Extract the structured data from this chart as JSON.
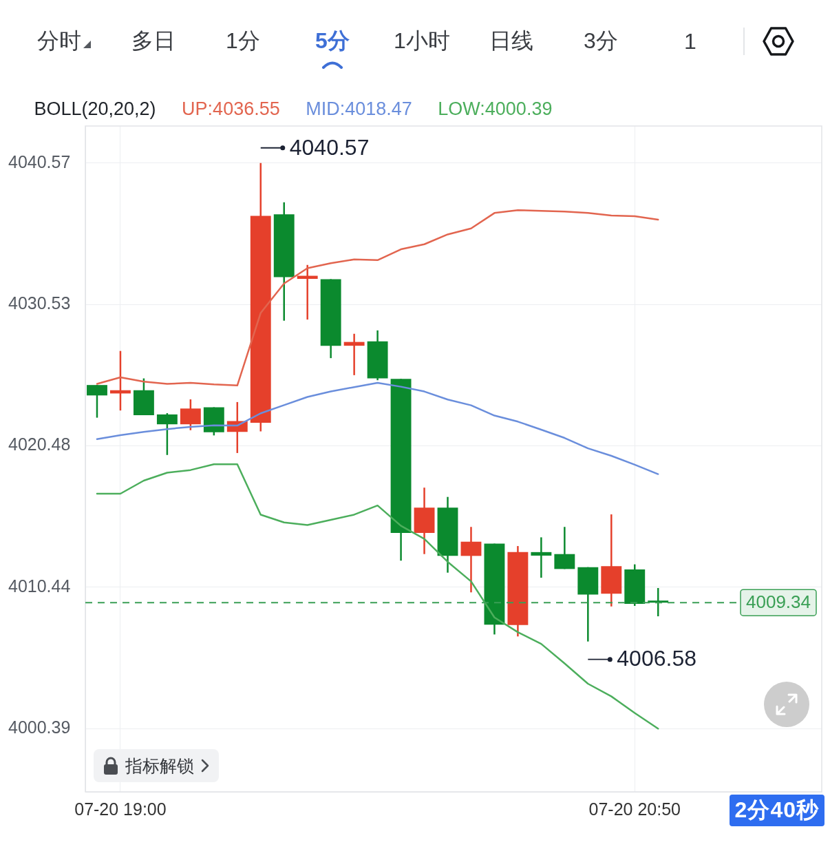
{
  "chart_data": {
    "type": "candlestick",
    "legend_title": "BOLL(20,20,2)",
    "legend": "top left",
    "grid": true,
    "categories": [
      null,
      "07-20 19:00",
      null,
      null,
      null,
      null,
      null,
      null,
      null,
      null,
      null,
      null,
      null,
      null,
      null,
      null,
      null,
      null,
      null,
      null,
      null,
      null,
      null,
      "07-20 20:50",
      null
    ],
    "ohlc": [
      [
        4024.8,
        4024.8,
        4022.48,
        4024.06
      ],
      [
        4024.2,
        4027.22,
        4022.99,
        4024.43
      ],
      [
        4024.43,
        4025.27,
        4022.66,
        4022.66
      ],
      [
        4022.71,
        4022.8,
        4019.83,
        4022.01
      ],
      [
        4022.01,
        4023.78,
        4021.59,
        4023.13
      ],
      [
        4023.22,
        4023.22,
        4021.22,
        4021.45
      ],
      [
        4021.47,
        4023.59,
        4019.97,
        4022.24
      ],
      [
        4022.12,
        4040.57,
        4021.51,
        4036.82
      ],
      [
        4036.93,
        4037.78,
        4029.37,
        4032.46
      ],
      [
        4032.34,
        4033.33,
        4029.45,
        4032.56
      ],
      [
        4032.32,
        4032.32,
        4026.71,
        4027.59
      ],
      [
        4027.59,
        4028.44,
        4025.5,
        4027.86
      ],
      [
        4027.9,
        4028.68,
        4025.14,
        4025.27
      ],
      [
        4025.24,
        4025.24,
        4012.32,
        4014.29
      ],
      [
        4014.29,
        4017.51,
        4012.79,
        4016.09
      ],
      [
        4016.09,
        4016.85,
        4011.47,
        4012.66
      ],
      [
        4012.66,
        4014.72,
        4010.07,
        4013.67
      ],
      [
        4013.53,
        4013.53,
        4007.08,
        4007.78
      ],
      [
        4007.75,
        4013.36,
        4006.94,
        4012.94
      ],
      [
        4012.93,
        4013.98,
        4011.11,
        4012.68
      ],
      [
        4012.79,
        4014.72,
        4011.73,
        4011.73
      ],
      [
        4011.86,
        4011.86,
        4006.58,
        4009.92
      ],
      [
        4009.97,
        4015.61,
        4009.07,
        4011.93
      ],
      [
        4011.7,
        4012.06,
        4009.11,
        4009.25
      ],
      [
        4009.34,
        4010.38,
        4008.37,
        4009.34
      ]
    ],
    "colors": [
      "#0b8a2e",
      "#e5402b",
      "#0b8a2e",
      "#0b8a2e",
      "#e5402b",
      "#0b8a2e",
      "#e5402b",
      "#e5402b",
      "#0b8a2e",
      "#e5402b",
      "#0b8a2e",
      "#e5402b",
      "#0b8a2e",
      "#0b8a2e",
      "#e5402b",
      "#0b8a2e",
      "#e5402b",
      "#0b8a2e",
      "#e5402b",
      "#0b8a2e",
      "#0b8a2e",
      "#0b8a2e",
      "#e5402b",
      "#0b8a2e",
      "#0b8a2e"
    ],
    "series": [
      {
        "type": "line",
        "name": "UP:4036.55",
        "color": "#e2654f",
        "values": [
          4024.88,
          4025.35,
          4025.04,
          4024.88,
          4024.96,
          4024.84,
          4024.77,
          4029.92,
          4032.01,
          4033.1,
          4033.45,
          4033.72,
          4033.67,
          4034.44,
          4034.8,
          4035.5,
          4035.92,
          4037.02,
          4037.22,
          4037.17,
          4037.12,
          4037.02,
          4036.84,
          4036.79,
          4036.55
        ]
      },
      {
        "type": "line",
        "name": "MID:4018.47",
        "color": "#6a8edc",
        "values": [
          4020.96,
          4021.24,
          4021.47,
          4021.67,
          4021.83,
          4021.93,
          4021.92,
          4022.79,
          4023.37,
          4023.95,
          4024.34,
          4024.65,
          4024.96,
          4024.68,
          4024.34,
          4023.77,
          4023.36,
          4022.63,
          4022.2,
          4021.63,
          4021.04,
          4020.3,
          4019.77,
          4019.14,
          4018.47
        ]
      },
      {
        "type": "line",
        "name": "LOW:4000.39",
        "color": "#4cae5c",
        "values": [
          4017.08,
          4017.08,
          4018.01,
          4018.57,
          4018.76,
          4019.17,
          4019.17,
          4015.59,
          4015.04,
          4014.85,
          4015.22,
          4015.59,
          4016.24,
          4014.8,
          4013.87,
          4012.24,
          4010.85,
          4008.29,
          4007.24,
          4006.41,
          4005.02,
          4003.58,
          4002.68,
          4001.5,
          4000.39
        ]
      }
    ],
    "ylim": [
      3995.9,
      4043.2
    ],
    "yticks": [
      4040.57,
      4030.53,
      4020.48,
      4010.44,
      4000.39
    ],
    "ref_lines": [
      {
        "axis": "y",
        "value": 4009.34,
        "color": "#3a9f55",
        "line_style": "dashed"
      }
    ],
    "annotations": [
      "分时",
      "多日",
      "1分",
      "5分",
      "1小时",
      "日线",
      "3分",
      "1",
      "指标解锁",
      "2分40秒",
      "4040.57",
      "4006.58",
      {
        "text": "4009.34",
        "y": 4009.34
      }
    ]
  }
}
